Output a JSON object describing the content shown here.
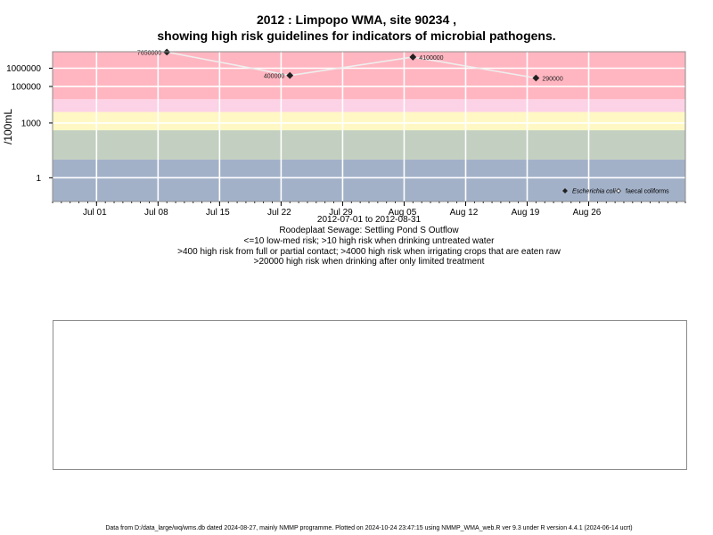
{
  "title_line1": "2012 : Limpopo WMA, site 90234 ,",
  "title_line2": "showing high risk guidelines for indicators of microbial pathogens.",
  "chart_data": {
    "type": "scatter",
    "ylabel": "/100mL",
    "y_scale": "log10",
    "ylim": [
      0.05,
      8000000
    ],
    "xlim": [
      "2012-06-26",
      "2012-09-06"
    ],
    "y_ticks": [
      {
        "value": 1,
        "label": "1"
      },
      {
        "value": 1000,
        "label": "1000"
      },
      {
        "value": 100000,
        "label": "100000"
      },
      {
        "value": 1000000,
        "label": "1000000"
      }
    ],
    "x_ticks": [
      {
        "date": "2012-07-01",
        "label": "Jul 01"
      },
      {
        "date": "2012-07-08",
        "label": "Jul 08"
      },
      {
        "date": "2012-07-15",
        "label": "Jul 15"
      },
      {
        "date": "2012-07-22",
        "label": "Jul 22"
      },
      {
        "date": "2012-07-29",
        "label": "Jul 29"
      },
      {
        "date": "2012-08-05",
        "label": "Aug 05"
      },
      {
        "date": "2012-08-12",
        "label": "Aug 12"
      },
      {
        "date": "2012-08-19",
        "label": "Aug 19"
      },
      {
        "date": "2012-08-26",
        "label": "Aug 26"
      }
    ],
    "risk_bands": [
      {
        "from": 0.05,
        "to": 10,
        "color": "#a3b1c8"
      },
      {
        "from": 10,
        "to": 400,
        "color": "#c3cfc0"
      },
      {
        "from": 400,
        "to": 4000,
        "color": "#fff8c4"
      },
      {
        "from": 4000,
        "to": 20000,
        "color": "#fcd2e6"
      },
      {
        "from": 20000,
        "to": 8000000,
        "color": "#ffb6c1"
      }
    ],
    "grid": true,
    "legend_position": "bottom-right",
    "series": [
      {
        "name": "Escherichia coli",
        "marker": "filled-diamond",
        "color": "#222222",
        "points": [
          {
            "x": "2012-07-09",
            "y": 7650000,
            "label": "7650000"
          },
          {
            "x": "2012-07-23",
            "y": 400000,
            "label": "400000"
          },
          {
            "x": "2012-08-06",
            "y": 4100000,
            "label": "4100000"
          },
          {
            "x": "2012-08-20",
            "y": 290000,
            "label": "290000"
          }
        ]
      },
      {
        "name": "faecal coliforms",
        "marker": "open-diamond",
        "color": "#222222",
        "points": []
      }
    ]
  },
  "captions": {
    "date_range": "2012-07-01 to 2012-08-31",
    "site_name": "Roodeplaat Sewage: Settling Pond S Outflow",
    "guideline1": "<=10 low-med risk; >10 high risk when drinking untreated water",
    "guideline2": ">400 high risk from full or partial contact; >4000 high risk when irrigating crops that are eaten raw",
    "guideline3": ">20000 high risk when drinking after only limited treatment"
  },
  "footer": "Data from D:/data_large/wq/wms.db dated 2024-08-27, mainly NMMP programme. Plotted on 2024-10-24 23:47:15 using NMMP_WMA_web.R ver 9.3 under R version 4.4.1 (2024-06-14 ucrt)"
}
